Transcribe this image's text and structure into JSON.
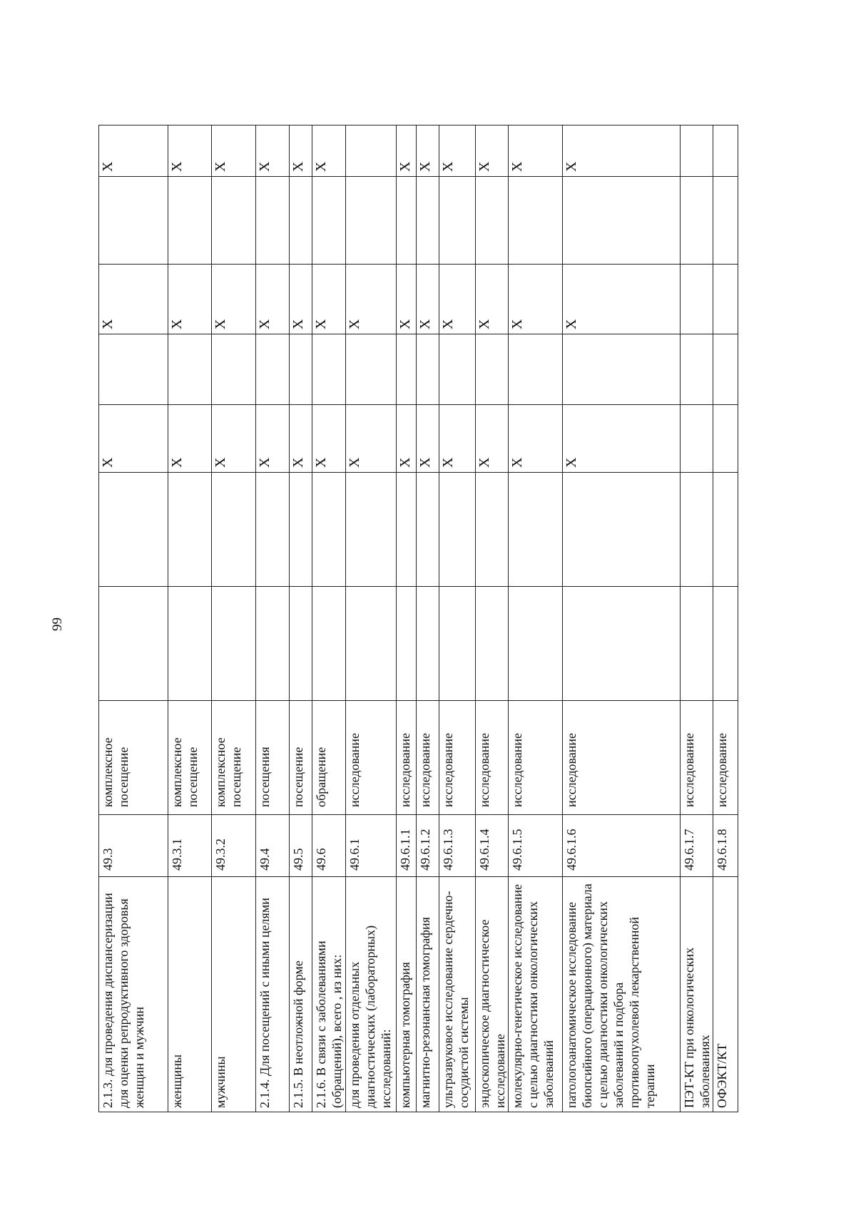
{
  "page_number": "99",
  "rows": [
    {
      "name": "2.1.3. для проведения диспансеризации для оценки репродуктивного здоровья женщин и мужчин",
      "code": "49.3",
      "unit": "комплексное посещение",
      "cells": [
        "",
        "",
        "X",
        "",
        "X",
        "",
        "X"
      ]
    },
    {
      "name": "женщины",
      "code": "49.3.1",
      "unit": "комплексное посещение",
      "cells": [
        "",
        "",
        "X",
        "",
        "X",
        "",
        "X"
      ]
    },
    {
      "name": "мужчины",
      "code": "49.3.2",
      "unit": "комплексное посещение",
      "cells": [
        "",
        "",
        "X",
        "",
        "X",
        "",
        "X"
      ]
    },
    {
      "name": "2.1.4. Для посещений с иными целями",
      "code": "49.4",
      "unit": "посещения",
      "cells": [
        "",
        "",
        "X",
        "",
        "X",
        "",
        "X"
      ]
    },
    {
      "name": "2.1.5. В неотложной форме",
      "code": "49.5",
      "unit": "посещение",
      "cells": [
        "",
        "",
        "X",
        "",
        "X",
        "",
        "X"
      ]
    },
    {
      "name": "2.1.6. В связи с заболеваниями (обращений), всего , из них:",
      "code": "49.6",
      "unit": "обращение",
      "cells": [
        "",
        "",
        "X",
        "",
        "X",
        "",
        "X"
      ]
    },
    {
      "name": "для проведения отдельных диагностических (лабораторных) исследований:",
      "code": "49.6.1",
      "unit": "исследование",
      "cells": [
        "",
        "",
        "X",
        "",
        "X",
        "",
        ""
      ]
    },
    {
      "name": "компьютерная томография",
      "code": "49.6.1.1",
      "unit": "исследование",
      "cells": [
        "",
        "",
        "X",
        "",
        "X",
        "",
        "X"
      ]
    },
    {
      "name": "магнитно-резонансная томография",
      "code": "49.6.1.2",
      "unit": "исследование",
      "cells": [
        "",
        "",
        "X",
        "",
        "X",
        "",
        "X"
      ]
    },
    {
      "name": "ультразвуковое исследование сердечно-сосудистой системы",
      "code": "49.6.1.3",
      "unit": "исследование",
      "cells": [
        "",
        "",
        "X",
        "",
        "X",
        "",
        "X"
      ]
    },
    {
      "name": "эндоскопическое диагностическое исследование",
      "code": "49.6.1.4",
      "unit": "исследование",
      "cells": [
        "",
        "",
        "X",
        "",
        "X",
        "",
        "X"
      ]
    },
    {
      "name": "молекулярно-генетическое исследование с целью диагностики онкологических заболеваний",
      "code": "49.6.1.5",
      "unit": "исследование",
      "cells": [
        "",
        "",
        "X",
        "",
        "X",
        "",
        "X"
      ]
    },
    {
      "name": "патологоанатомическое исследование биопсийного (операционного) материала с целью диагностики онкологических заболеваний и подбора противоопухолевой лекарственной терапии",
      "code": "49.6.1.6",
      "unit": "исследование",
      "cells": [
        "",
        "",
        "X",
        "",
        "X",
        "",
        "X"
      ]
    },
    {
      "name": "ПЭТ-КТ при онкологических заболеваниях",
      "code": "49.6.1.7",
      "unit": "исследование",
      "cells": [
        "",
        "",
        "",
        "",
        "",
        "",
        ""
      ]
    },
    {
      "name": "ОФЭКТ/КТ",
      "code": "49.6.1.8",
      "unit": "исследование",
      "cells": [
        "",
        "",
        "",
        "",
        "",
        "",
        ""
      ]
    }
  ]
}
